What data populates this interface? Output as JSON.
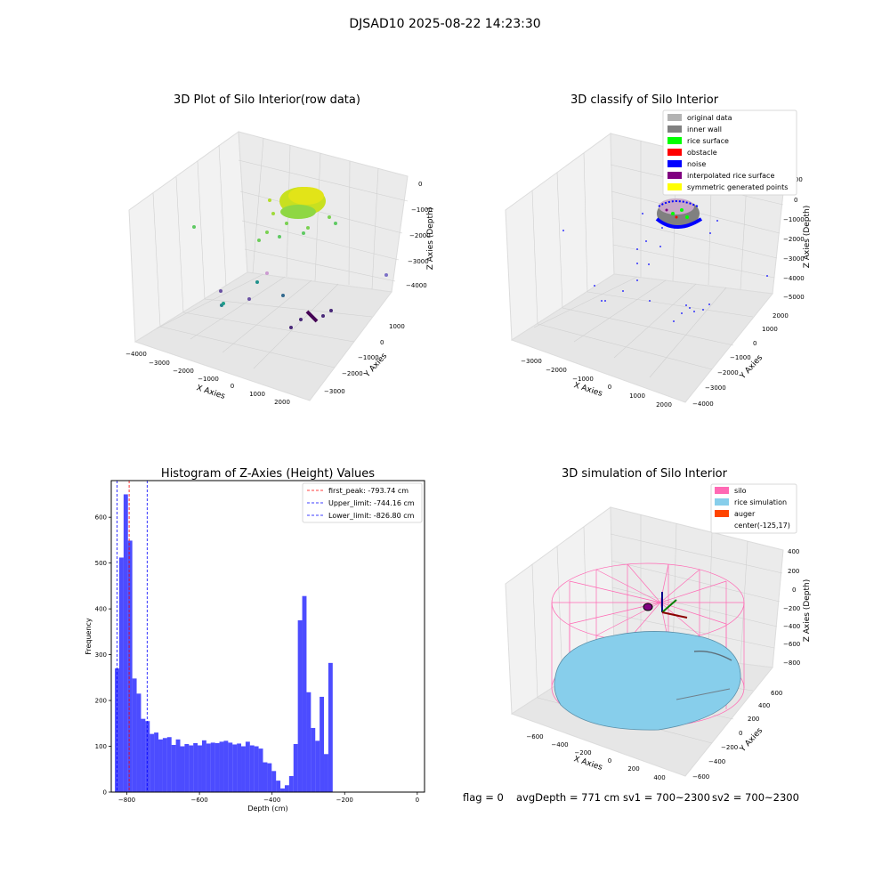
{
  "figure_title": "DJSAD10 2025-08-22 14:23:30",
  "chart_data": [
    {
      "type": "scatter",
      "subtype": "3d",
      "title": "3D Plot of Silo Interior(row data)",
      "xlabel": "X Axies",
      "ylabel": "Y Axies",
      "zlabel": "Z Axies (Depth)",
      "x_ticks": [
        "−4000",
        "−3000",
        "−2000",
        "−1000",
        "0",
        "1000",
        "2000"
      ],
      "y_ticks": [
        "−3000",
        "−2000",
        "−1000",
        "0",
        "1000"
      ],
      "z_ticks": [
        "−4000",
        "−3000",
        "−2000",
        "−1000",
        "0"
      ],
      "colormap": "viridis"
    },
    {
      "type": "scatter",
      "subtype": "3d",
      "title": "3D classify of Silo Interior",
      "xlabel": "X Axies",
      "ylabel": "Y Axies",
      "zlabel": "Z Axies (Depth)",
      "x_ticks": [
        "−3000",
        "−2000",
        "−1000",
        "0",
        "1000",
        "2000"
      ],
      "y_ticks": [
        "−4000",
        "−3000",
        "−2000",
        "−1000",
        "0",
        "1000",
        "2000"
      ],
      "z_ticks": [
        "−5000",
        "−4000",
        "−3000",
        "−2000",
        "−1000",
        "0",
        "1000"
      ],
      "legend_position": "top-right",
      "legend": [
        {
          "label": "original data",
          "color": "#b3b3b3"
        },
        {
          "label": "inner wall",
          "color": "#808080"
        },
        {
          "label": "rice surface",
          "color": "#00ff00"
        },
        {
          "label": "obstacle",
          "color": "#ff0000"
        },
        {
          "label": "noise",
          "color": "#0000ff"
        },
        {
          "label": "interpolated rice surface",
          "color": "#800080"
        },
        {
          "label": "symmetric generated points",
          "color": "#ffff00"
        }
      ]
    },
    {
      "type": "bar",
      "subtype": "histogram",
      "title": "Histogram of Z-Axies (Height) Values",
      "xlabel": "Depth (cm)",
      "ylabel": "Frequency",
      "xlim": [
        -843,
        20
      ],
      "ylim": [
        0,
        680
      ],
      "x_ticks": [
        -800,
        -600,
        -400,
        -200,
        0
      ],
      "x_tick_labels": [
        "−800",
        "−600",
        "−400",
        "−200",
        "0"
      ],
      "y_ticks": [
        0,
        100,
        200,
        300,
        400,
        500,
        600
      ],
      "bin_start": -833,
      "bin_width": 12,
      "bar_color": "#0000ff",
      "values": [
        270,
        512,
        650,
        549,
        248,
        215,
        160,
        155,
        127,
        130,
        115,
        118,
        120,
        103,
        115,
        100,
        105,
        102,
        107,
        102,
        113,
        106,
        108,
        107,
        110,
        112,
        108,
        104,
        106,
        100,
        110,
        102,
        100,
        95,
        65,
        63,
        46,
        25,
        8,
        15,
        35,
        105,
        375,
        428,
        218,
        140,
        112,
        208,
        83,
        282
      ],
      "vlines": [
        {
          "label": "first_peak: -793.74 cm",
          "value": -793.74,
          "color": "#ff0000"
        },
        {
          "label": "Upper_limit: -744.16 cm",
          "value": -744.16,
          "color": "#0000ff"
        },
        {
          "label": "Lower_limit: -826.80 cm",
          "value": -826.8,
          "color": "#0000ff"
        }
      ],
      "legend_position": "top-right"
    },
    {
      "type": "area",
      "subtype": "3d-surface",
      "title": "3D simulation of Silo Interior",
      "xlabel": "X Axies",
      "ylabel": "Y Axies",
      "zlabel": "Z Axies (Depth)",
      "x_ticks": [
        "−600",
        "−400",
        "−200",
        "0",
        "200",
        "400"
      ],
      "y_ticks": [
        "−600",
        "−400",
        "−200",
        "0",
        "200",
        "400",
        "600"
      ],
      "z_ticks": [
        "−800",
        "−600",
        "−400",
        "−200",
        "0",
        "200",
        "400"
      ],
      "legend_position": "top-right",
      "legend": [
        {
          "label": "silo",
          "color": "#ff69b4"
        },
        {
          "label": "rice simulation",
          "color": "#87ceeb"
        },
        {
          "label": "auger",
          "color": "#ff4500"
        },
        {
          "label": "center(-125,17)",
          "color": ""
        }
      ]
    }
  ],
  "footer": {
    "flag": "flag = 0",
    "avg_depth": "avgDepth = 771 cm",
    "sv1": "sv1 = 700~2300",
    "sv2": "sv2 = 700~2300"
  }
}
